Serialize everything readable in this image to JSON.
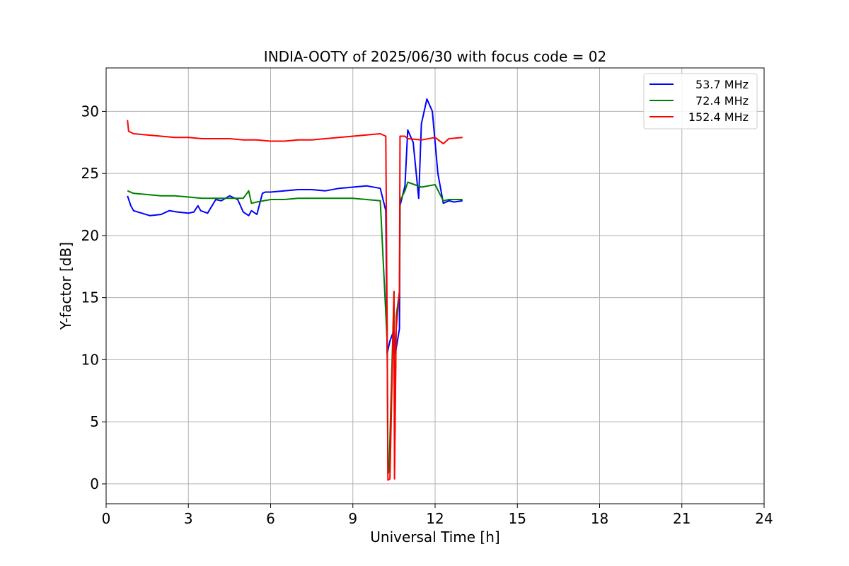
{
  "chart_data": {
    "type": "line",
    "title": "INDIA-OOTY of 2025/06/30 with focus code = 02",
    "xlabel": "Universal Time [h]",
    "ylabel": "Y-factor [dB]",
    "xlim": [
      0,
      24
    ],
    "ylim": [
      -1.6,
      33.5
    ],
    "xticks": [
      0,
      3,
      6,
      9,
      12,
      15,
      18,
      21,
      24
    ],
    "yticks": [
      0,
      5,
      10,
      15,
      20,
      25,
      30
    ],
    "grid": true,
    "legend_position": "top-right",
    "series": [
      {
        "name": "53.7 MHz",
        "color": "#0000ff",
        "x": [
          0.78,
          0.9,
          1.0,
          1.3,
          1.6,
          2.0,
          2.3,
          2.6,
          3.0,
          3.2,
          3.35,
          3.45,
          3.7,
          4.0,
          4.2,
          4.5,
          4.8,
          5.0,
          5.2,
          5.3,
          5.5,
          5.7,
          5.8,
          6.0,
          6.5,
          7.0,
          7.5,
          8.0,
          8.5,
          9.0,
          9.5,
          10.0,
          10.2,
          10.25,
          10.35,
          10.5,
          10.55,
          10.7,
          10.72,
          10.9,
          11.0,
          11.2,
          11.4,
          11.5,
          11.7,
          11.9,
          12.1,
          12.3,
          12.5,
          12.7,
          13.0
        ],
        "y": [
          23.2,
          22.4,
          22.0,
          21.8,
          21.6,
          21.7,
          22.0,
          21.9,
          21.8,
          21.9,
          22.4,
          22.0,
          21.8,
          22.9,
          22.8,
          23.2,
          22.9,
          21.9,
          21.6,
          22.0,
          21.7,
          23.4,
          23.5,
          23.5,
          23.6,
          23.7,
          23.7,
          23.6,
          23.8,
          23.9,
          24.0,
          23.8,
          22.0,
          10.5,
          11.5,
          12.4,
          10.5,
          12.5,
          22.4,
          24.0,
          28.5,
          27.5,
          23.0,
          29.0,
          31.0,
          30.0,
          25.0,
          22.6,
          22.8,
          22.7,
          22.8
        ]
      },
      {
        "name": "72.4 MHz",
        "color": "#008000",
        "x": [
          0.78,
          1.0,
          1.5,
          2.0,
          2.5,
          3.0,
          3.5,
          4.0,
          4.5,
          5.0,
          5.2,
          5.3,
          5.5,
          6.0,
          6.5,
          7.0,
          7.5,
          8.0,
          8.5,
          9.0,
          9.5,
          10.0,
          10.25,
          10.28,
          10.32,
          10.5,
          10.52,
          10.58,
          10.7,
          10.72,
          10.9,
          11.0,
          11.5,
          12.0,
          12.3,
          12.5,
          13.0
        ],
        "y": [
          23.6,
          23.4,
          23.3,
          23.2,
          23.2,
          23.1,
          23.0,
          23.0,
          23.0,
          23.0,
          23.6,
          22.6,
          22.7,
          22.9,
          22.9,
          23.0,
          23.0,
          23.0,
          23.0,
          23.0,
          22.9,
          22.8,
          11.5,
          0.8,
          1.0,
          15.5,
          1.2,
          13.5,
          15.5,
          22.8,
          23.6,
          24.3,
          23.9,
          24.1,
          22.8,
          22.9,
          22.9
        ]
      },
      {
        "name": "152.4 MHz",
        "color": "#ff0000",
        "x": [
          0.78,
          0.82,
          1.0,
          1.5,
          2.0,
          2.5,
          3.0,
          3.5,
          4.0,
          4.5,
          5.0,
          5.5,
          6.0,
          6.5,
          7.0,
          7.5,
          8.0,
          8.5,
          9.0,
          9.5,
          10.0,
          10.2,
          10.25,
          10.28,
          10.35,
          10.5,
          10.52,
          10.58,
          10.7,
          10.72,
          10.9,
          11.0,
          11.5,
          12.0,
          12.3,
          12.5,
          13.0
        ],
        "y": [
          29.3,
          28.4,
          28.2,
          28.1,
          28.0,
          27.9,
          27.9,
          27.8,
          27.8,
          27.8,
          27.7,
          27.7,
          27.6,
          27.6,
          27.7,
          27.7,
          27.8,
          27.9,
          28.0,
          28.1,
          28.2,
          28.0,
          12.7,
          0.3,
          0.4,
          15.5,
          0.4,
          12.5,
          15.5,
          28.0,
          28.0,
          27.8,
          27.7,
          27.9,
          27.4,
          27.8,
          27.9
        ]
      }
    ]
  }
}
